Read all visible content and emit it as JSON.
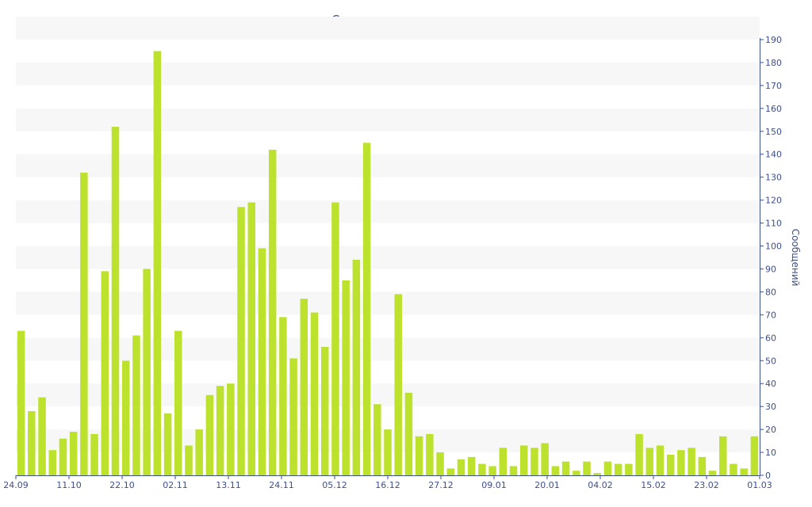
{
  "chart_data": {
    "type": "bar",
    "title": "Статистика активности",
    "xlabel": "",
    "ylabel": "Сообщений",
    "ylim": [
      0,
      190
    ],
    "ytick_step": 10,
    "y_axis_side": "right",
    "grid": "alternating horizontal bands",
    "colors": {
      "bar": "#bde22e",
      "band": "#f7f7f7",
      "axis": "#3e4f8a",
      "title": "#3e4f8a"
    },
    "x_tick_labels": [
      "24.09",
      "11.10",
      "22.10",
      "02.11",
      "13.11",
      "24.11",
      "05.12",
      "16.12",
      "27.12",
      "09.01",
      "20.01",
      "04.02",
      "15.02",
      "23.02",
      "01.03"
    ],
    "values": [
      63,
      28,
      34,
      11,
      16,
      19,
      132,
      18,
      89,
      152,
      50,
      61,
      90,
      185,
      27,
      63,
      13,
      20,
      35,
      39,
      40,
      117,
      119,
      99,
      142,
      69,
      51,
      77,
      71,
      56,
      119,
      85,
      94,
      145,
      31,
      20,
      79,
      36,
      17,
      18,
      10,
      3,
      7,
      8,
      5,
      4,
      12,
      4,
      13,
      12,
      14,
      4,
      6,
      2,
      6,
      1,
      6,
      5,
      5,
      18,
      12,
      13,
      9,
      11,
      12,
      8,
      2,
      17,
      5,
      3,
      17
    ]
  }
}
